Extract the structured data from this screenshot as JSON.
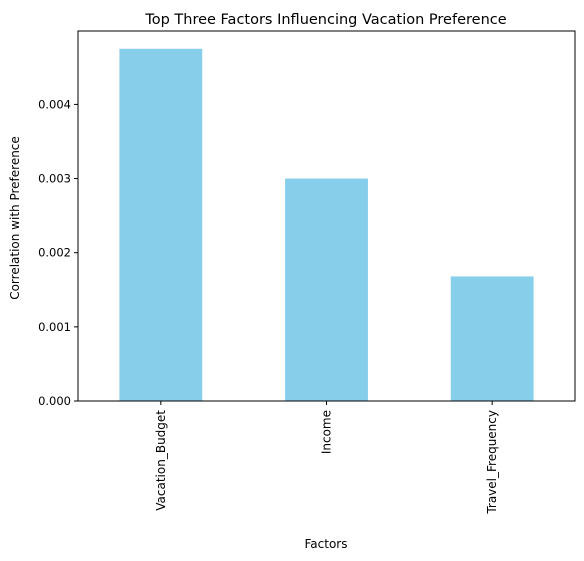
{
  "chart_data": {
    "type": "bar",
    "title": "Top Three Factors Influencing Vacation Preference",
    "xlabel": "Factors",
    "ylabel": "Correlation with Preference",
    "categories": [
      "Vacation_Budget",
      "Income",
      "Travel_Frequency"
    ],
    "values": [
      0.00475,
      0.003,
      0.00168
    ],
    "ylim": [
      0,
      0.00499
    ],
    "yticks": [
      0.0,
      0.001,
      0.002,
      0.003,
      0.004
    ],
    "ytick_labels": [
      "0.000",
      "0.001",
      "0.002",
      "0.003",
      "0.004"
    ],
    "bar_color": "#87CEEB",
    "grid": false,
    "legend": "none"
  }
}
